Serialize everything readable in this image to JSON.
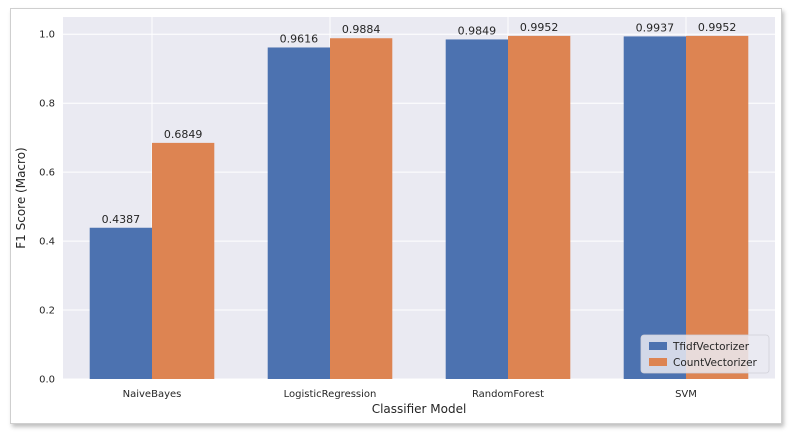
{
  "chart_data": {
    "type": "bar",
    "categories": [
      "NaiveBayes",
      "LogisticRegression",
      "RandomForest",
      "SVM"
    ],
    "series": [
      {
        "name": "TfidfVectorizer",
        "color": "#4c72b0",
        "values": [
          0.4387,
          0.9616,
          0.9849,
          0.9937
        ]
      },
      {
        "name": "CountVectorizer",
        "color": "#dd8452",
        "values": [
          0.6849,
          0.9884,
          0.9952,
          0.9952
        ]
      }
    ],
    "title": "",
    "xlabel": "Classifier Model",
    "ylabel": "F1 Score (Macro)",
    "ylim": [
      0,
      1.05
    ],
    "yticks": [
      "0.0",
      "0.2",
      "0.4",
      "0.6",
      "0.8",
      "1.0"
    ],
    "grid": true,
    "legend_position": "bottom-right",
    "background": "#eaeaf2"
  }
}
